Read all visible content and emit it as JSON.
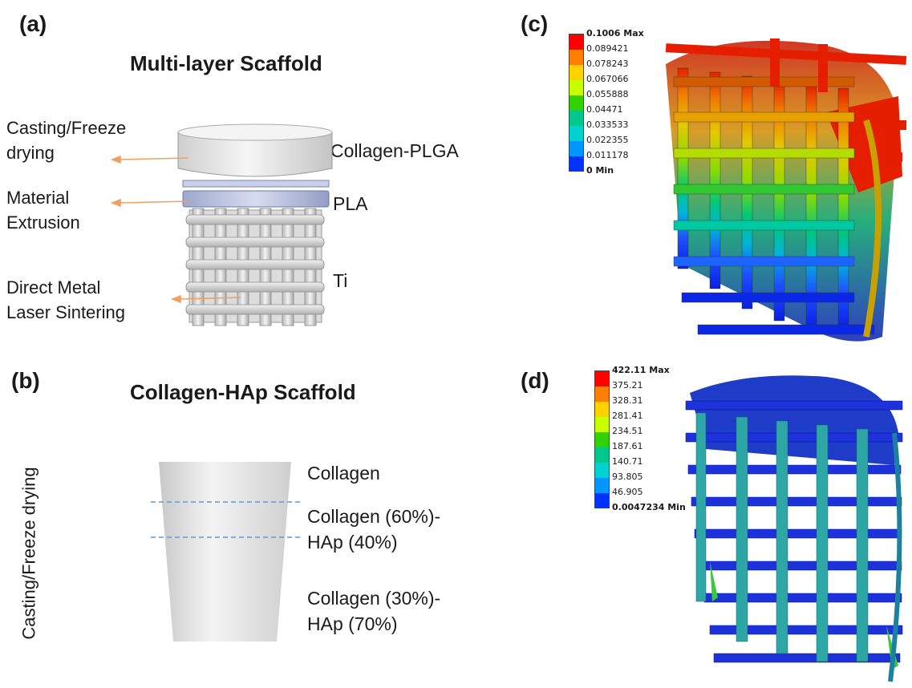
{
  "panel_a": {
    "letter": "(a)",
    "title": "Multi-layer Scaffold",
    "processes": [
      {
        "line1": "Casting/Freeze",
        "line2": "drying"
      },
      {
        "line1": "Material",
        "line2": "Extrusion"
      },
      {
        "line1": "Direct Metal",
        "line2": "Laser Sintering"
      }
    ],
    "layers": [
      "Collagen-PLGA",
      "PLA",
      "Ti"
    ],
    "arrow_color": "#f0a060"
  },
  "panel_b": {
    "letter": "(b)",
    "title": "Collagen-HAp Scaffold",
    "process_label": "Casting/Freeze drying",
    "layers": [
      {
        "line1": "Collagen",
        "line2": ""
      },
      {
        "line1": "Collagen (60%)-",
        "line2": "HAp (40%)"
      },
      {
        "line1": "Collagen (30%)-",
        "line2": "HAp (70%)"
      }
    ],
    "divider_color": "#5b9bd5"
  },
  "panel_c": {
    "letter": "(c)",
    "legend": [
      "0.1006 Max",
      "0.089421",
      "0.078243",
      "0.067066",
      "0.055888",
      "0.04471",
      "0.033533",
      "0.022355",
      "0.011178",
      "0 Min"
    ]
  },
  "panel_d": {
    "letter": "(d)",
    "legend": [
      "422.11 Max",
      "375.21",
      "328.31",
      "281.41",
      "234.51",
      "187.61",
      "140.71",
      "93.805",
      "46.905",
      "0.0047234 Min"
    ]
  },
  "colormap": [
    "#ff0000",
    "#ff7f00",
    "#ffd200",
    "#c8ff00",
    "#32d200",
    "#00c88c",
    "#00d2d2",
    "#0096ff",
    "#0032ff"
  ]
}
